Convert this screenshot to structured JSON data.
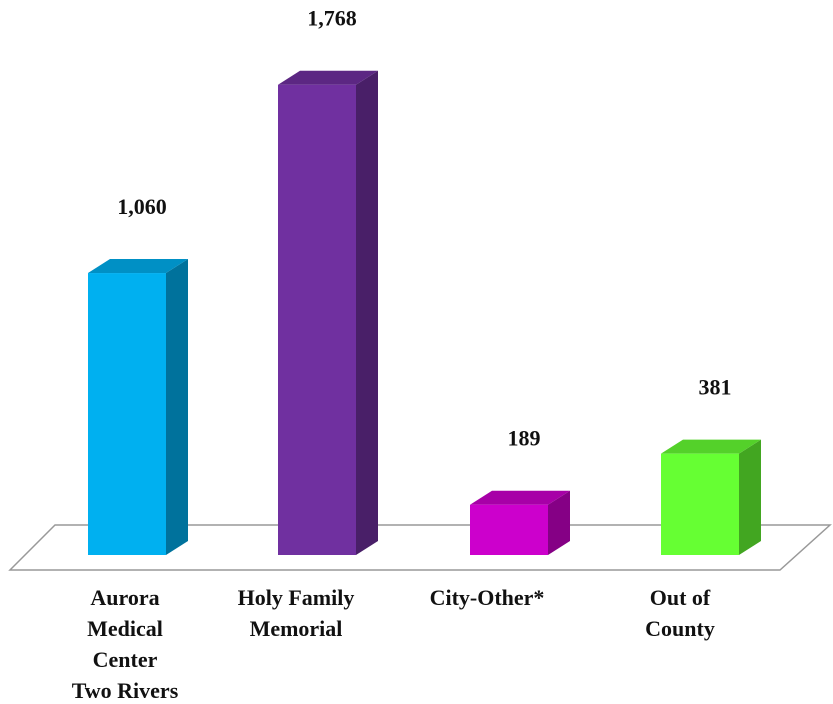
{
  "chart_data": {
    "type": "bar3d",
    "categories": [
      [
        "Aurora",
        "Medical",
        "Center",
        "Two Rivers"
      ],
      [
        "Holy Family",
        "Memorial"
      ],
      [
        "City-Other*"
      ],
      [
        "Out of",
        "County"
      ]
    ],
    "values": [
      1060,
      1768,
      189,
      381
    ],
    "value_labels": [
      "1,060",
      "1,768",
      "189",
      "381"
    ],
    "colors": [
      "#00b0f0",
      "#7030a0",
      "#cc00cc",
      "#66ff33"
    ]
  }
}
